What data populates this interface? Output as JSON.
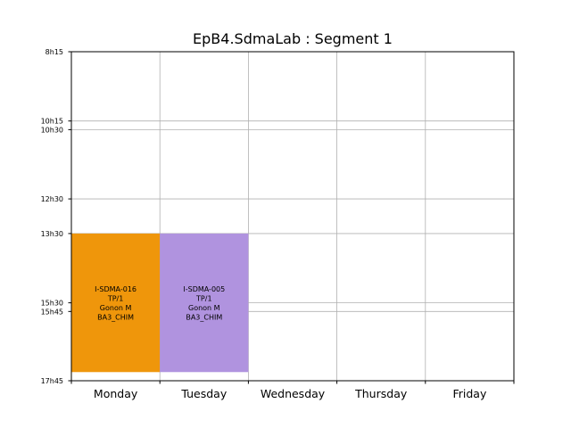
{
  "chart_data": {
    "type": "bar",
    "title": "EpB4.SdmaLab : Segment 1",
    "categories": [
      "Monday",
      "Tuesday",
      "Wednesday",
      "Thursday",
      "Friday"
    ],
    "y_ticks": [
      {
        "label": "8h15",
        "value": 8.25
      },
      {
        "label": "10h15",
        "value": 10.25
      },
      {
        "label": "10h30",
        "value": 10.5
      },
      {
        "label": "12h30",
        "value": 12.5
      },
      {
        "label": "13h30",
        "value": 13.5
      },
      {
        "label": "15h30",
        "value": 15.5
      },
      {
        "label": "15h45",
        "value": 15.75
      },
      {
        "label": "17h45",
        "value": 17.75
      }
    ],
    "ylim": [
      8.25,
      17.75
    ],
    "y_inverted": true,
    "grid": true,
    "events": [
      {
        "day": "Monday",
        "start": 13.5,
        "end": 17.5,
        "color": "#ef960b",
        "lines": [
          "I-SDMA-016",
          "TP/1",
          "Gonon M",
          "BA3_CHIM"
        ]
      },
      {
        "day": "Tuesday",
        "start": 13.5,
        "end": 17.5,
        "color": "#b093df",
        "lines": [
          "I-SDMA-005",
          "TP/1",
          "Gonon M",
          "BA3_CHIM"
        ]
      }
    ]
  }
}
